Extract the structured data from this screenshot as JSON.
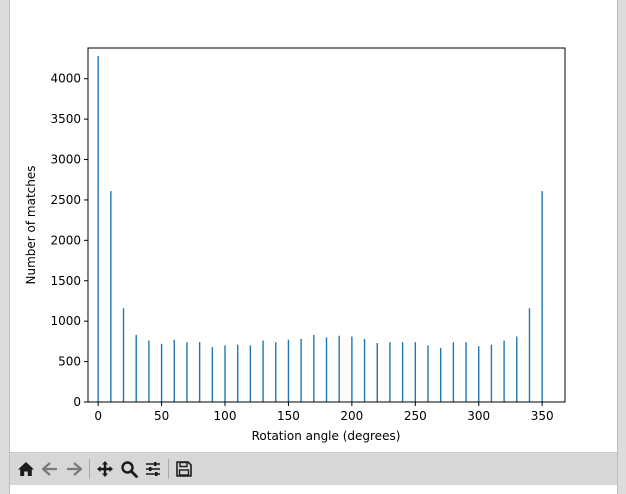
{
  "toolbar": {
    "buttons": [
      {
        "name": "home-icon",
        "label": "Home"
      },
      {
        "name": "back-icon",
        "label": "Back"
      },
      {
        "name": "forward-icon",
        "label": "Forward"
      },
      {
        "name": "pan-icon",
        "label": "Pan"
      },
      {
        "name": "zoom-icon",
        "label": "Zoom"
      },
      {
        "name": "configure-subplots-icon",
        "label": "Subplots"
      },
      {
        "name": "save-icon",
        "label": "Save"
      }
    ]
  },
  "chart_data": {
    "type": "bar",
    "title": "",
    "xlabel": "Rotation angle (degrees)",
    "ylabel": "Number of matches",
    "xlim": [
      -8,
      368
    ],
    "ylim": [
      0,
      4380
    ],
    "xticks": [
      0,
      50,
      100,
      150,
      200,
      250,
      300,
      350
    ],
    "yticks": [
      0,
      500,
      1000,
      1500,
      2000,
      2500,
      3000,
      3500,
      4000
    ],
    "bar_color": "#1f77b4",
    "grid": false,
    "x": [
      0,
      10,
      20,
      30,
      40,
      50,
      60,
      70,
      80,
      90,
      100,
      110,
      120,
      130,
      140,
      150,
      160,
      170,
      180,
      190,
      200,
      210,
      220,
      230,
      240,
      250,
      260,
      270,
      280,
      290,
      300,
      310,
      320,
      330,
      340,
      350
    ],
    "values": [
      4280,
      2610,
      1160,
      830,
      760,
      720,
      770,
      740,
      740,
      680,
      700,
      710,
      700,
      760,
      740,
      770,
      780,
      830,
      800,
      820,
      810,
      780,
      730,
      740,
      740,
      740,
      700,
      670,
      740,
      740,
      690,
      710,
      760,
      810,
      1160,
      2610
    ]
  }
}
